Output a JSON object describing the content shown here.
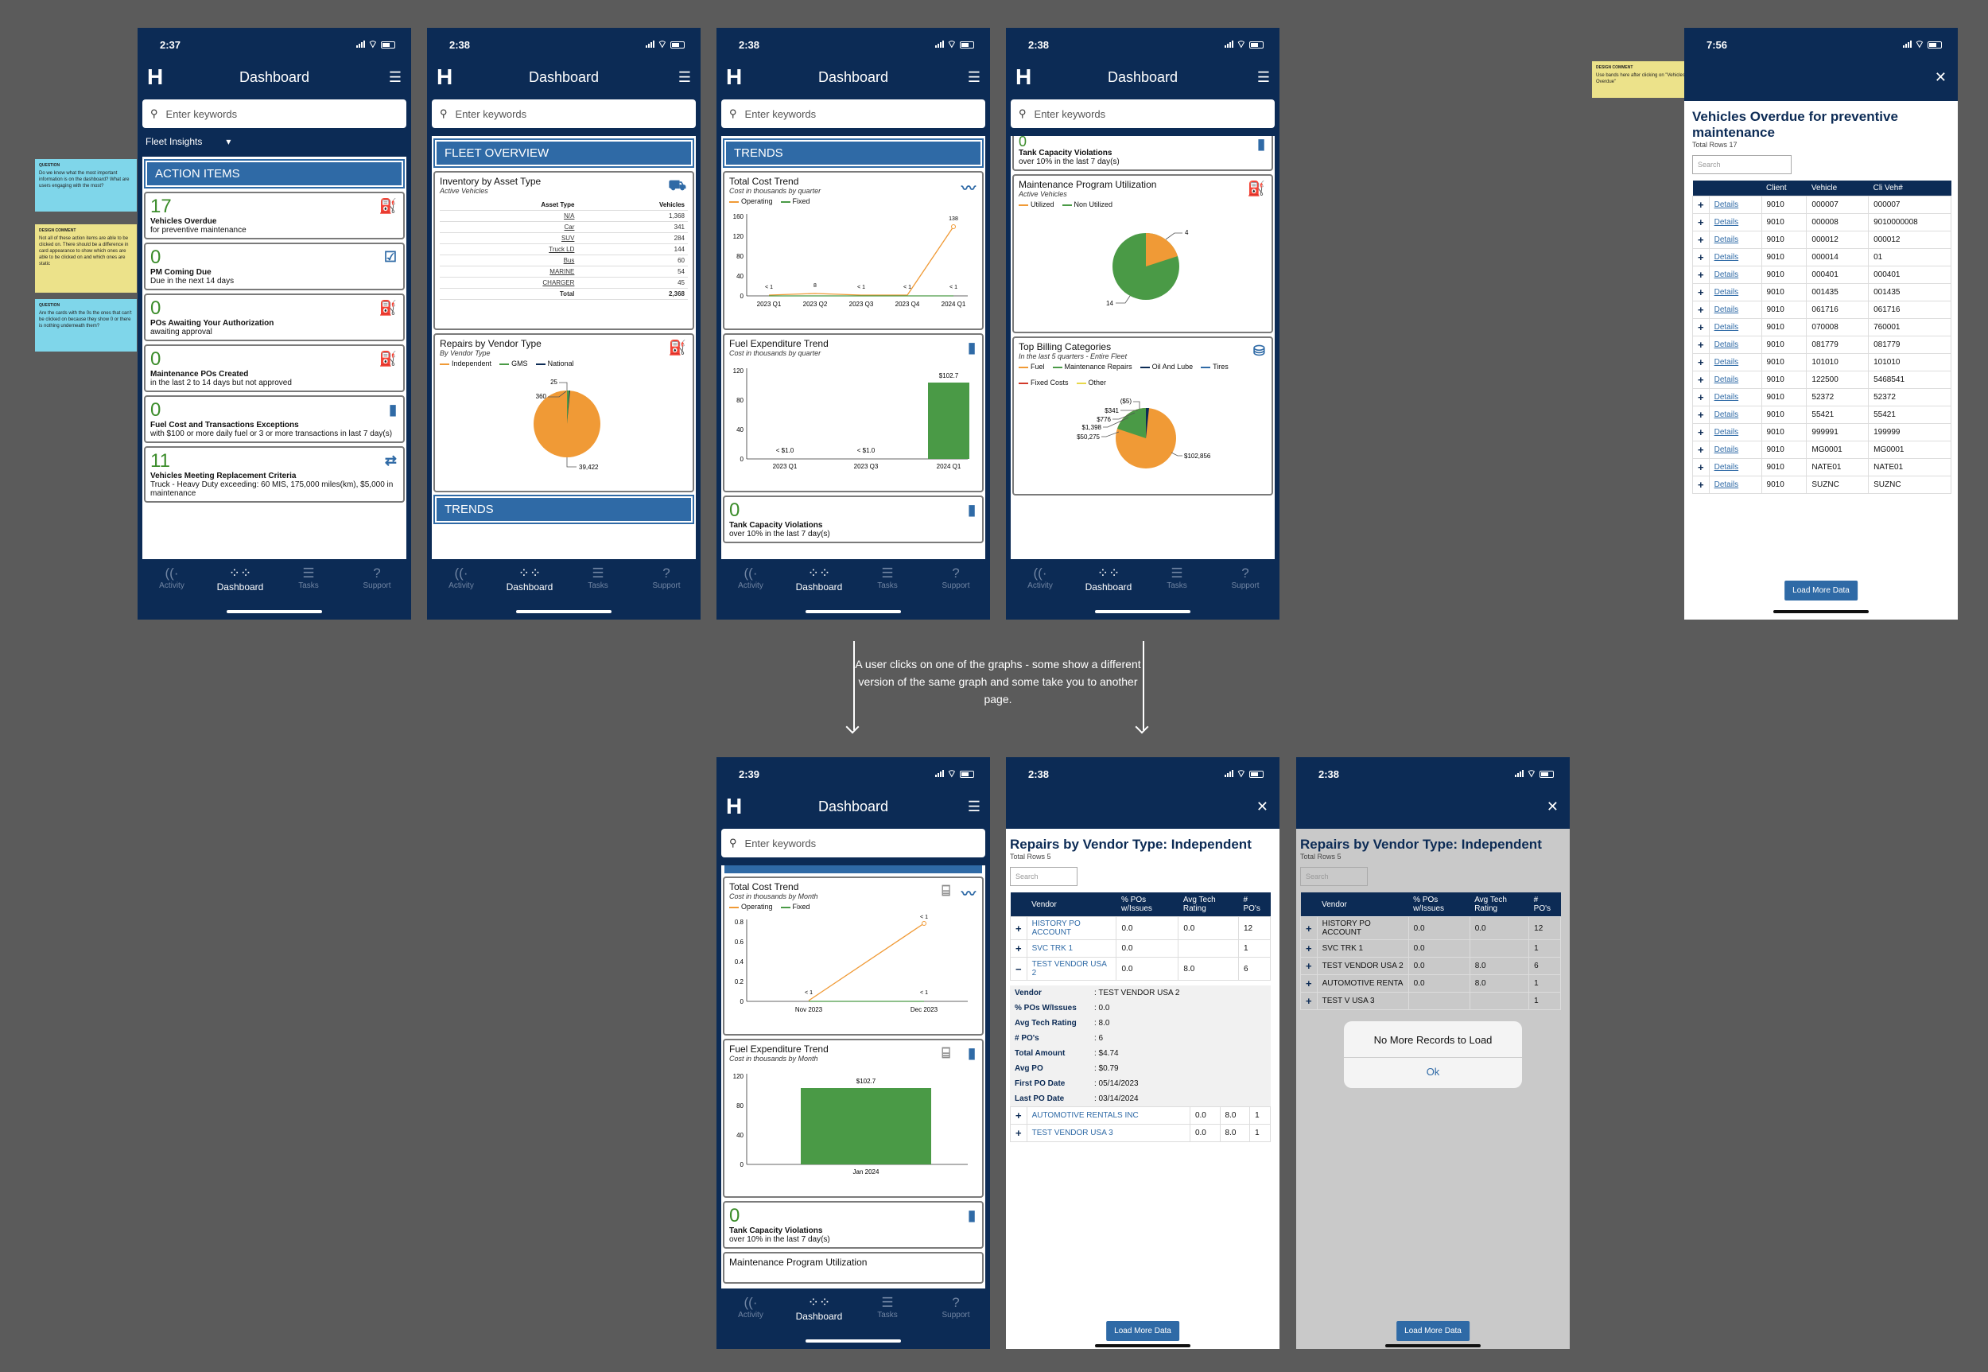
{
  "tabs": [
    {
      "icon": "((·",
      "label": "Activity"
    },
    {
      "icon": "⁘⁘",
      "label": "Dashboard"
    },
    {
      "icon": "☰",
      "label": "Tasks"
    },
    {
      "icon": "?",
      "label": "Support"
    }
  ],
  "header": {
    "title": "Dashboard",
    "search_placeholder": "Enter keywords"
  },
  "times": {
    "p1": "2:37",
    "p2": "2:38",
    "p3": "2:38",
    "p4": "2:38",
    "p5": "7:56",
    "p6": "2:39",
    "p7": "2:38",
    "p8": "2:38"
  },
  "notes": [
    {
      "title": "QUESTION",
      "text": "Do we know what the most important information is on the dashboard? What are users engaging with the most?"
    },
    {
      "title": "DESIGN COMMENT",
      "text": "Not all of these action items are able to be clicked on. There should be a difference in card appearance to show which ones are able to be clicked on and which ones are static"
    },
    {
      "title": "QUESTION",
      "text": "Are the cards with the 0s the ones that can't be clicked on because they show 0 or there is nothing underneath them?"
    },
    {
      "title": "DESIGN COMMENT",
      "text": "Use bands here after clicking on \"Vehicles Overdue\""
    }
  ],
  "caption": "A user clicks on one of the graphs - some show a different version of the same graph and some take you to another page.",
  "screen1": {
    "fleet_label": "Fleet Insights",
    "section": "ACTION ITEMS",
    "cards": [
      {
        "num": "17",
        "label": "Vehicles Overdue",
        "sub": "for preventive maintenance",
        "icon": "⛽"
      },
      {
        "num": "0",
        "label": "PM Coming Due",
        "sub": "Due in the next 14 days",
        "icon": "☑"
      },
      {
        "num": "0",
        "label": "POs Awaiting Your Authorization",
        "sub": "awaiting approval",
        "icon": "⛽"
      },
      {
        "num": "0",
        "label": "Maintenance POs Created",
        "sub": "in the last 2 to 14 days but not approved",
        "icon": "⛽"
      },
      {
        "num": "0",
        "label": "Fuel Cost and Transactions Exceptions",
        "sub": "with $100 or more daily fuel or 3 or more transactions in last 7 day(s)",
        "icon": "▮"
      },
      {
        "num": "11",
        "label": "Vehicles Meeting Replacement Criteria",
        "sub": "Truck - Heavy Duty exceeding: 60 MIS, 175,000 miles(km), $5,000 in maintenance",
        "icon": "⇄"
      }
    ]
  },
  "screen2": {
    "section": "FLEET OVERVIEW",
    "inv_title": "Inventory by Asset Type",
    "inv_sub": "Active Vehicles",
    "inv_head": [
      "Asset Type",
      "Vehicles"
    ],
    "inv_rows": [
      [
        "N/A",
        "1,368"
      ],
      [
        "Car",
        "341"
      ],
      [
        "SUV",
        "284"
      ],
      [
        "Truck LD",
        "144"
      ],
      [
        "Bus",
        "60"
      ],
      [
        "MARINE",
        "54"
      ],
      [
        "CHARGER",
        "45"
      ]
    ],
    "inv_total": [
      "Total",
      "2,368"
    ],
    "rep_title": "Repairs by Vendor Type",
    "rep_sub": "By Vendor Type",
    "rep_legend": [
      "Independent",
      "GMS",
      "National"
    ],
    "rep_labels": [
      "25",
      "360",
      "39,422"
    ],
    "section2": "TRENDS"
  },
  "screen3": {
    "section": "TRENDS",
    "tc_title": "Total Cost Trend",
    "tc_sub": "Cost in thousands by quarter",
    "legend": [
      "Operating",
      "Fixed"
    ],
    "tc_x": [
      "2023 Q1",
      "2023 Q2",
      "2023 Q3",
      "2023 Q4",
      "2024 Q1"
    ],
    "tc_y": [
      "160",
      "120",
      "80",
      "40",
      "0"
    ],
    "tc_pt_labels": [
      "< 1",
      "8",
      "< 1",
      "< 1",
      "138",
      "< 1"
    ],
    "fe_title": "Fuel Expenditure Trend",
    "fe_sub": "Cost in thousands by quarter",
    "fe_y": [
      "120",
      "80",
      "40",
      "0"
    ],
    "fe_x": [
      "2023 Q1",
      "2023 Q3",
      "2024 Q1"
    ],
    "fe_labels": [
      "< $1.0",
      "< $1.0",
      "$102.7"
    ],
    "tank_num": "0",
    "tank_label": "Tank Capacity Violations",
    "tank_sub": "over 10% in the last 7 day(s)"
  },
  "screen4": {
    "top_num": "0",
    "top_label": "Tank Capacity Violations",
    "top_sub": "over 10% in the last 7 day(s)",
    "mp_title": "Maintenance Program Utilization",
    "mp_sub": "Active Vehicles",
    "mp_legend": [
      "Utilized",
      "Non Utilized"
    ],
    "mp_labels": [
      "4",
      "14"
    ],
    "bc_title": "Top Billing Categories",
    "bc_sub": "In the last 5 quarters  - Entire Fleet",
    "bc_legend": [
      "Fuel",
      "Maintenance Repairs",
      "Oil And Lube",
      "Tires",
      "Fixed Costs",
      "Other"
    ],
    "bc_labels": [
      "($5)",
      "$341",
      "$776",
      "$1,398",
      "$50,275",
      "$102,856"
    ]
  },
  "screen5": {
    "title": "Vehicles Overdue for preventive maintenance",
    "rows": "Total Rows 17",
    "search": "Search",
    "head": [
      "",
      "",
      "Client",
      "Vehicle",
      "Cli Veh#"
    ],
    "link": "Details",
    "data": [
      [
        "9010",
        "000007",
        "000007"
      ],
      [
        "9010",
        "000008",
        "9010000008"
      ],
      [
        "9010",
        "000012",
        "000012"
      ],
      [
        "9010",
        "000014",
        "01"
      ],
      [
        "9010",
        "000401",
        "000401"
      ],
      [
        "9010",
        "001435",
        "001435"
      ],
      [
        "9010",
        "061716",
        "061716"
      ],
      [
        "9010",
        "070008",
        "760001"
      ],
      [
        "9010",
        "081779",
        "081779"
      ],
      [
        "9010",
        "101010",
        "101010"
      ],
      [
        "9010",
        "122500",
        "5468541"
      ],
      [
        "9010",
        "52372",
        "52372"
      ],
      [
        "9010",
        "55421",
        "55421"
      ],
      [
        "9010",
        "999991",
        "199999"
      ],
      [
        "9010",
        "MG0001",
        "MG0001"
      ],
      [
        "9010",
        "NATE01",
        "NATE01"
      ],
      [
        "9010",
        "SUZNC",
        "SUZNC"
      ]
    ],
    "button": "Load More Data"
  },
  "screen6": {
    "tc_title": "Total Cost Trend",
    "tc_sub": "Cost in thousands by Month",
    "legend": [
      "Operating",
      "Fixed"
    ],
    "tc_y": [
      "0.8",
      "0.6",
      "0.4",
      "0.2",
      "0"
    ],
    "tc_x": [
      "Nov 2023",
      "Dec 2023"
    ],
    "tc_labels": [
      "< 1",
      "< 1",
      "< 1"
    ],
    "fe_title": "Fuel Expenditure Trend",
    "fe_sub": "Cost in thousands by Month",
    "fe_y": [
      "120",
      "80",
      "40",
      "0"
    ],
    "fe_x": [
      "Jan 2024"
    ],
    "fe_label": "$102.7",
    "tank_num": "0",
    "tank_label": "Tank Capacity Violations",
    "tank_sub": "over 10% in the last 7 day(s)",
    "peek": "Maintenance Program Utilization"
  },
  "screen7": {
    "title": "Repairs by Vendor Type: Independent",
    "rows": "Total Rows 5",
    "search": "Search",
    "head": [
      "",
      "Vendor",
      "% POs w/Issues",
      "Avg Tech Rating",
      "# PO's"
    ],
    "rows_data": [
      [
        "+",
        "HISTORY PO ACCOUNT",
        "0.0",
        "0.0",
        "12"
      ],
      [
        "+",
        "SVC TRK 1",
        "0.0",
        "",
        "1"
      ],
      [
        "−",
        "TEST VENDOR USA 2",
        "0.0",
        "8.0",
        "6"
      ]
    ],
    "detail": [
      [
        "Vendor",
        ": TEST VENDOR USA 2"
      ],
      [
        "% POs W/Issues",
        ": 0.0"
      ],
      [
        "Avg Tech Rating",
        ": 8.0"
      ],
      [
        "# PO's",
        ": 6"
      ],
      [
        "Total Amount",
        ": $4.74"
      ],
      [
        "Avg PO",
        ": $0.79"
      ],
      [
        "First PO Date",
        ": 05/14/2023"
      ],
      [
        "Last PO Date",
        ": 03/14/2024"
      ]
    ],
    "rows_after": [
      [
        "+",
        "AUTOMOTIVE RENTALS INC",
        "0.0",
        "8.0",
        "1"
      ],
      [
        "+",
        "TEST VENDOR USA 3",
        "0.0",
        "8.0",
        "1"
      ]
    ],
    "button": "Load More Data"
  },
  "screen8": {
    "title": "Repairs by Vendor Type: Independent",
    "rows": "Total Rows 5",
    "search": "Search",
    "rows_data": [
      [
        "+",
        "HISTORY PO ACCOUNT",
        "0.0",
        "0.0",
        "12"
      ],
      [
        "+",
        "SVC TRK 1",
        "0.0",
        "",
        "1"
      ],
      [
        "+",
        "TEST VENDOR USA 2",
        "0.0",
        "8.0",
        "6"
      ],
      [
        "+",
        "AUTOMOTIVE RENTA",
        "0.0",
        "8.0",
        "1"
      ],
      [
        "+",
        "TEST V USA 3",
        "",
        "",
        "1"
      ]
    ],
    "dialog": "No More Records to Load",
    "ok": "Ok",
    "button": "Load More Data"
  }
}
